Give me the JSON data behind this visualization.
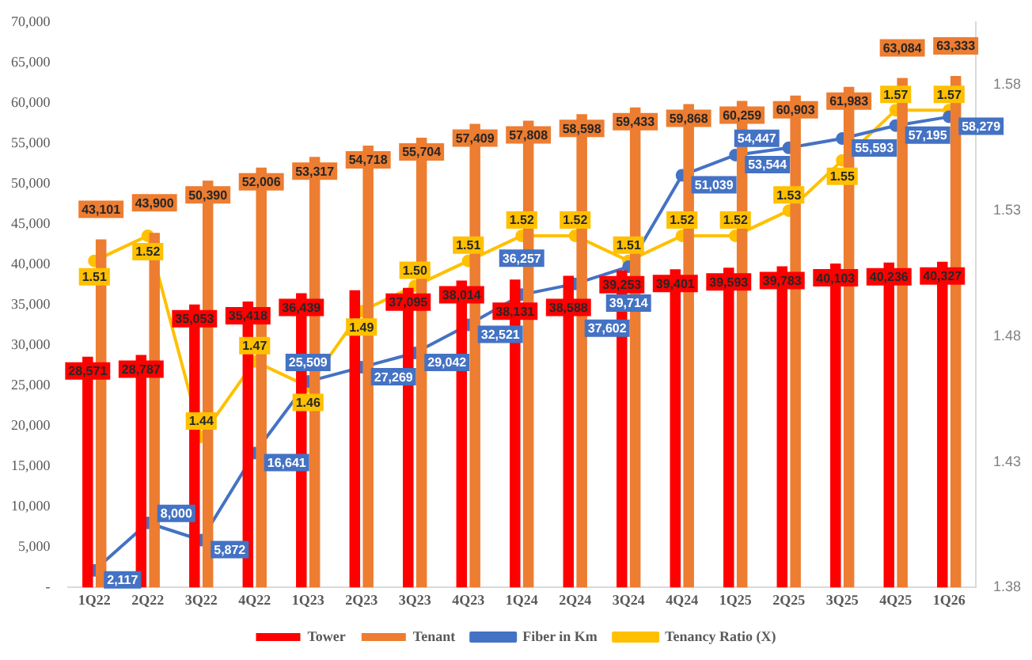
{
  "chart_data": {
    "type": "bar",
    "categories": [
      "1Q22",
      "2Q22",
      "3Q22",
      "4Q22",
      "1Q23",
      "2Q23",
      "3Q23",
      "4Q23",
      "1Q24",
      "2Q24",
      "3Q24",
      "4Q24",
      "1Q25",
      "2Q25",
      "3Q25",
      "4Q25",
      "1Q26"
    ],
    "series": [
      {
        "name": "Tower",
        "color": "#ff0000",
        "values": [
          28571,
          28787,
          35053,
          35418,
          36439,
          36800,
          37095,
          38014,
          38131,
          38588,
          39253,
          39401,
          39593,
          39783,
          40103,
          40236,
          40327
        ],
        "value_labels": [
          "28,571",
          "28,787",
          "35,053",
          "35,418",
          "36,439",
          null,
          "37,095",
          "38,014",
          "38,131",
          "38,588",
          "39,253",
          "39,401",
          "39,593",
          "39,783",
          "40,103",
          "40,236",
          "40,327"
        ]
      },
      {
        "name": "Tenant",
        "color": "#ed7d31",
        "values": [
          43101,
          43900,
          50390,
          52006,
          53317,
          54718,
          55704,
          57409,
          57808,
          58598,
          59433,
          59868,
          60259,
          60903,
          61983,
          63084,
          63333
        ],
        "value_labels": [
          "43,101",
          "43,900",
          "50,390",
          "52,006",
          "53,317",
          "54,718",
          "55,704",
          "57,409",
          "57,808",
          "58,598",
          "59,433",
          "59,868",
          "60,259",
          "60,903",
          "61,983",
          "63,084",
          "63,333"
        ]
      },
      {
        "name": "Fiber in Km",
        "type": "line",
        "color": "#4472c4",
        "values": [
          2117,
          8000,
          5872,
          16641,
          25509,
          27269,
          29042,
          32521,
          36257,
          37602,
          39714,
          51039,
          53544,
          54447,
          55593,
          57195,
          58279
        ],
        "value_labels": [
          "2,117",
          "8,000",
          "5,872",
          "16,641",
          "25,509",
          "27,269",
          "29,042",
          "32,521",
          "36,257",
          "37,602",
          "39,714",
          "51,039",
          "53,544",
          "54,447",
          "55,593",
          "57,195",
          "58,279"
        ]
      },
      {
        "name": "Tenancy Ratio (X)",
        "type": "line",
        "axis": "y2",
        "color": "#ffc000",
        "values": [
          1.51,
          1.52,
          1.44,
          1.47,
          1.46,
          1.49,
          1.5,
          1.51,
          1.52,
          1.52,
          1.51,
          1.52,
          1.52,
          1.53,
          1.55,
          1.57,
          1.57
        ],
        "value_labels": [
          "1.51",
          "1.52",
          "1.44",
          "1.47",
          "1.46",
          "1.49",
          "1.50",
          "1.51",
          "1.52",
          "1.52",
          "1.51",
          "1.52",
          "1.52",
          "1.53",
          "1.55",
          "1.57",
          "1.57"
        ]
      }
    ],
    "ylim": [
      0,
      70000
    ],
    "yticks": [
      {
        "value": 0,
        "label": "-"
      },
      {
        "value": 5000,
        "label": "5,000"
      },
      {
        "value": 10000,
        "label": "10,000"
      },
      {
        "value": 15000,
        "label": "15,000"
      },
      {
        "value": 20000,
        "label": "20,000"
      },
      {
        "value": 25000,
        "label": "25,000"
      },
      {
        "value": 30000,
        "label": "30,000"
      },
      {
        "value": 35000,
        "label": "35,000"
      },
      {
        "value": 40000,
        "label": "40,000"
      },
      {
        "value": 45000,
        "label": "45,000"
      },
      {
        "value": 50000,
        "label": "50,000"
      },
      {
        "value": 55000,
        "label": "55,000"
      },
      {
        "value": 60000,
        "label": "60,000"
      },
      {
        "value": 65000,
        "label": "65,000"
      },
      {
        "value": 70000,
        "label": "70,000"
      }
    ],
    "y2lim": [
      1.38,
      1.605
    ],
    "y2ticks": [
      1.38,
      1.43,
      1.48,
      1.53,
      1.58
    ],
    "grid": false,
    "legend": "bottom",
    "marker": "circle"
  }
}
